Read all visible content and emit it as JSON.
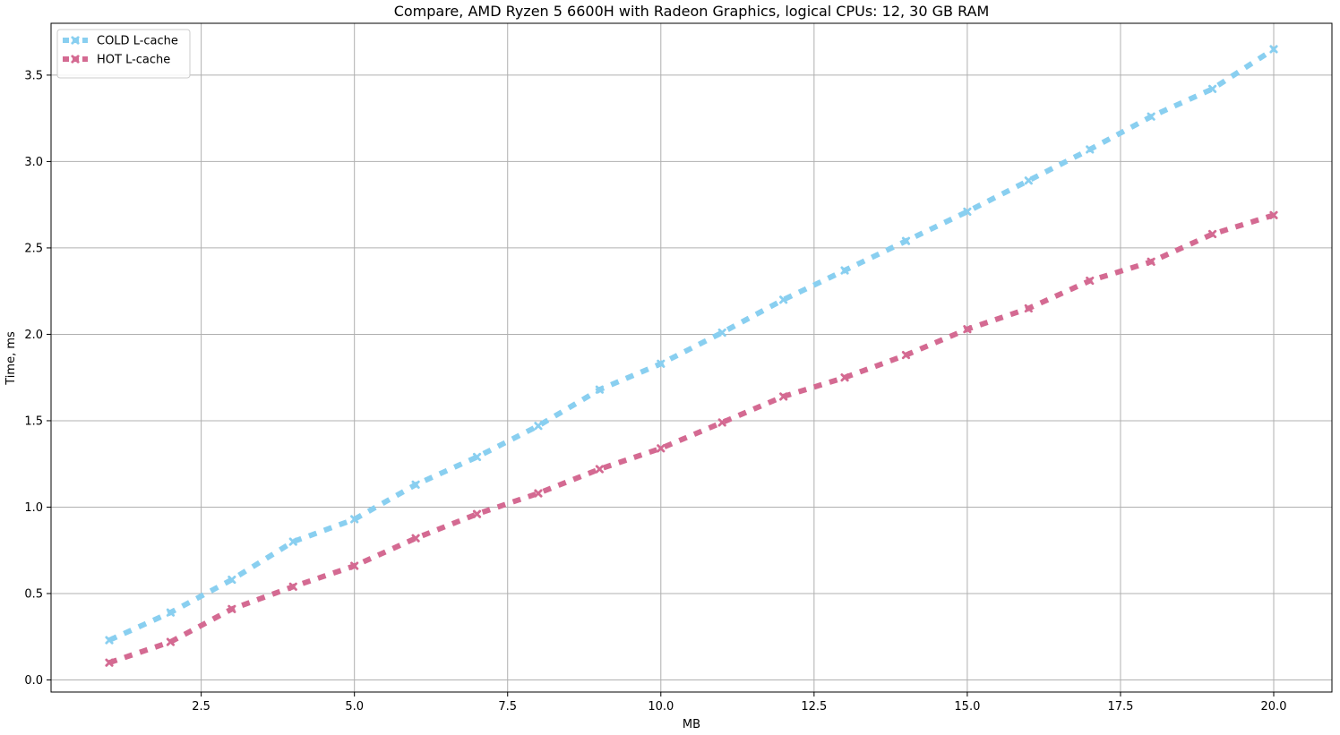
{
  "chart_data": {
    "type": "line",
    "title": "Compare, AMD Ryzen 5 6600H with Radeon Graphics, logical CPUs: 12, 30 GB RAM",
    "xlabel": "MB",
    "ylabel": "Time, ms",
    "xlim": [
      0.05,
      20.95
    ],
    "ylim": [
      -0.07,
      3.8
    ],
    "xticks": [
      2.5,
      5.0,
      7.5,
      10.0,
      12.5,
      15.0,
      17.5,
      20.0
    ],
    "xtick_labels": [
      "2.5",
      "5.0",
      "7.5",
      "10.0",
      "12.5",
      "15.0",
      "17.5",
      "20.0"
    ],
    "yticks": [
      0.0,
      0.5,
      1.0,
      1.5,
      2.0,
      2.5,
      3.0,
      3.5
    ],
    "ytick_labels": [
      "0.0",
      "0.5",
      "1.0",
      "1.5",
      "2.0",
      "2.5",
      "3.0",
      "3.5"
    ],
    "grid": true,
    "legend_position": "top-left",
    "x": [
      1,
      2,
      3,
      4,
      5,
      6,
      7,
      8,
      9,
      10,
      11,
      12,
      13,
      14,
      15,
      16,
      17,
      18,
      19,
      20
    ],
    "series": [
      {
        "name": "COLD L-cache",
        "color": "#89cff0",
        "marker": "x",
        "values": [
          0.23,
          0.39,
          0.58,
          0.8,
          0.93,
          1.13,
          1.29,
          1.47,
          1.68,
          1.83,
          2.01,
          2.2,
          2.37,
          2.54,
          2.71,
          2.89,
          3.07,
          3.26,
          3.42,
          3.65
        ]
      },
      {
        "name": "HOT L-cache",
        "color": "#d46a92",
        "marker": "x",
        "values": [
          0.1,
          0.22,
          0.41,
          0.54,
          0.66,
          0.82,
          0.96,
          1.08,
          1.22,
          1.34,
          1.49,
          1.64,
          1.75,
          1.88,
          2.03,
          2.15,
          2.31,
          2.42,
          2.58,
          2.69
        ]
      }
    ]
  }
}
